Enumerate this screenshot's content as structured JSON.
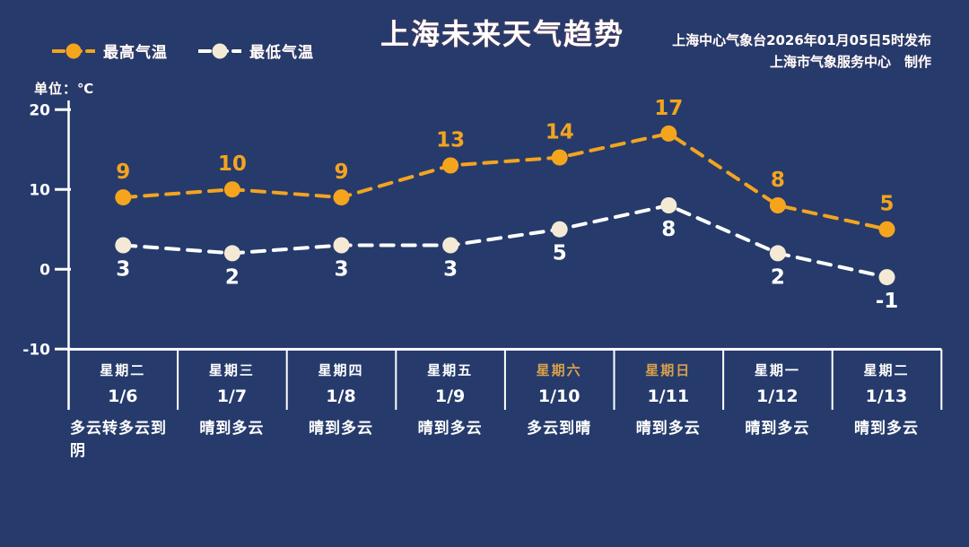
{
  "page": {
    "background": "#263b6c"
  },
  "header": {
    "title": "上海未来天气趋势",
    "publisher_line1": "上海中心气象台2026年01月05日5时发布",
    "publisher_line2": "上海市气象服务中心　制作",
    "units_label": "单位：℃"
  },
  "legend": {
    "items": [
      {
        "label": "最高气温",
        "line_color": "#f3a41f",
        "marker_color": "#f5a51d"
      },
      {
        "label": "最低气温",
        "line_color": "#ffffff",
        "marker_color": "#f4e9d4"
      }
    ]
  },
  "colors": {
    "background": "#263b6c",
    "axis": "#ffffff",
    "max_series": "#f3a41f",
    "min_series_line": "#ffffff",
    "min_series_marker": "#f4e9d4",
    "weekend_text": "#d9a14a",
    "text": "#ffffff"
  },
  "chart_data": {
    "type": "line",
    "title": "上海未来天气趋势",
    "ylabel": "单位：℃",
    "ylim": [
      -10,
      20
    ],
    "yticks": [
      20,
      10,
      0,
      -10
    ],
    "grid": false,
    "legend_position": "top-left",
    "categories": [
      "1/6",
      "1/7",
      "1/8",
      "1/9",
      "1/10",
      "1/11",
      "1/12",
      "1/13"
    ],
    "weekdays": [
      "星期二",
      "星期三",
      "星期四",
      "星期五",
      "星期六",
      "星期日",
      "星期一",
      "星期二"
    ],
    "weather": [
      "多云转多云到阴",
      "晴到多云",
      "晴到多云",
      "晴到多云",
      "多云到晴",
      "晴到多云",
      "晴到多云",
      "晴到多云"
    ],
    "weekend_indices": [
      4,
      5
    ],
    "series": [
      {
        "name": "最高气温",
        "values": [
          9,
          10,
          9,
          13,
          14,
          17,
          8,
          5
        ],
        "color": "#f3a41f",
        "marker_color": "#f5a51d",
        "label_color": "#f3a41f"
      },
      {
        "name": "最低气温",
        "values": [
          3,
          2,
          3,
          3,
          5,
          8,
          2,
          -1
        ],
        "color": "#ffffff",
        "marker_color": "#f4e9d4",
        "label_color": "#ffffff"
      }
    ]
  }
}
